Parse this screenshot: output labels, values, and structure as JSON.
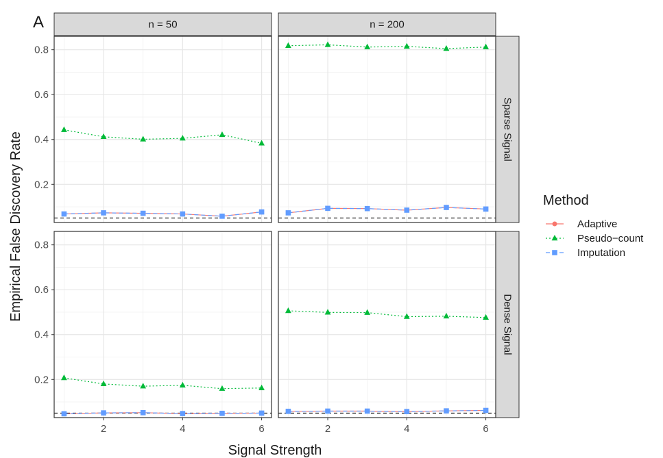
{
  "chart_data": {
    "type": "line",
    "panel_tag": "A",
    "xlabel": "Signal Strength",
    "ylabel": "Empirical False Discovery Rate",
    "xlim": [
      0.75,
      6.25
    ],
    "ylim": [
      0.03,
      0.86
    ],
    "x_ticks": [
      2,
      4,
      6
    ],
    "y_ticks": [
      0.2,
      0.4,
      0.6,
      0.8
    ],
    "reference_line": 0.05,
    "grid": true,
    "col_facets": [
      "n = 50",
      "n = 200"
    ],
    "row_facets": [
      "Sparse Signal",
      "Dense Signal"
    ],
    "legend": {
      "title": "Method",
      "position": "right",
      "entries": [
        {
          "name": "Adaptive",
          "color": "#F8766D",
          "shape": "circle",
          "line": "solid"
        },
        {
          "name": "Pseudo−count",
          "color": "#00BA38",
          "shape": "triangle",
          "line": "dotted"
        },
        {
          "name": "Imputation",
          "color": "#619CFF",
          "shape": "square",
          "line": "dashed"
        }
      ]
    },
    "x": [
      1,
      2,
      3,
      4,
      5,
      6
    ],
    "panels": [
      {
        "col": "n = 50",
        "row": "Sparse Signal",
        "series": [
          {
            "name": "Adaptive",
            "values": [
              0.068,
              0.073,
              0.071,
              0.068,
              0.058,
              0.077
            ]
          },
          {
            "name": "Pseudo−count",
            "values": [
              0.443,
              0.412,
              0.401,
              0.405,
              0.421,
              0.383
            ]
          },
          {
            "name": "Imputation",
            "values": [
              0.068,
              0.073,
              0.071,
              0.068,
              0.058,
              0.077
            ]
          }
        ]
      },
      {
        "col": "n = 200",
        "row": "Sparse Signal",
        "series": [
          {
            "name": "Adaptive",
            "values": [
              0.073,
              0.093,
              0.092,
              0.085,
              0.097,
              0.09
            ]
          },
          {
            "name": "Pseudo−count",
            "values": [
              0.818,
              0.822,
              0.812,
              0.815,
              0.805,
              0.812
            ]
          },
          {
            "name": "Imputation",
            "values": [
              0.073,
              0.093,
              0.092,
              0.085,
              0.097,
              0.09
            ]
          }
        ]
      },
      {
        "col": "n = 50",
        "row": "Dense Signal",
        "series": [
          {
            "name": "Adaptive",
            "values": [
              0.047,
              0.051,
              0.052,
              0.048,
              0.049,
              0.05
            ]
          },
          {
            "name": "Pseudo−count",
            "values": [
              0.207,
              0.18,
              0.17,
              0.174,
              0.159,
              0.162
            ]
          },
          {
            "name": "Imputation",
            "values": [
              0.047,
              0.051,
              0.052,
              0.048,
              0.049,
              0.05
            ]
          }
        ]
      },
      {
        "col": "n = 200",
        "row": "Dense Signal",
        "series": [
          {
            "name": "Adaptive",
            "values": [
              0.058,
              0.059,
              0.059,
              0.057,
              0.06,
              0.062
            ]
          },
          {
            "name": "Pseudo−count",
            "values": [
              0.506,
              0.499,
              0.498,
              0.48,
              0.482,
              0.476
            ]
          },
          {
            "name": "Imputation",
            "values": [
              0.058,
              0.059,
              0.059,
              0.057,
              0.06,
              0.062
            ]
          }
        ]
      }
    ]
  }
}
